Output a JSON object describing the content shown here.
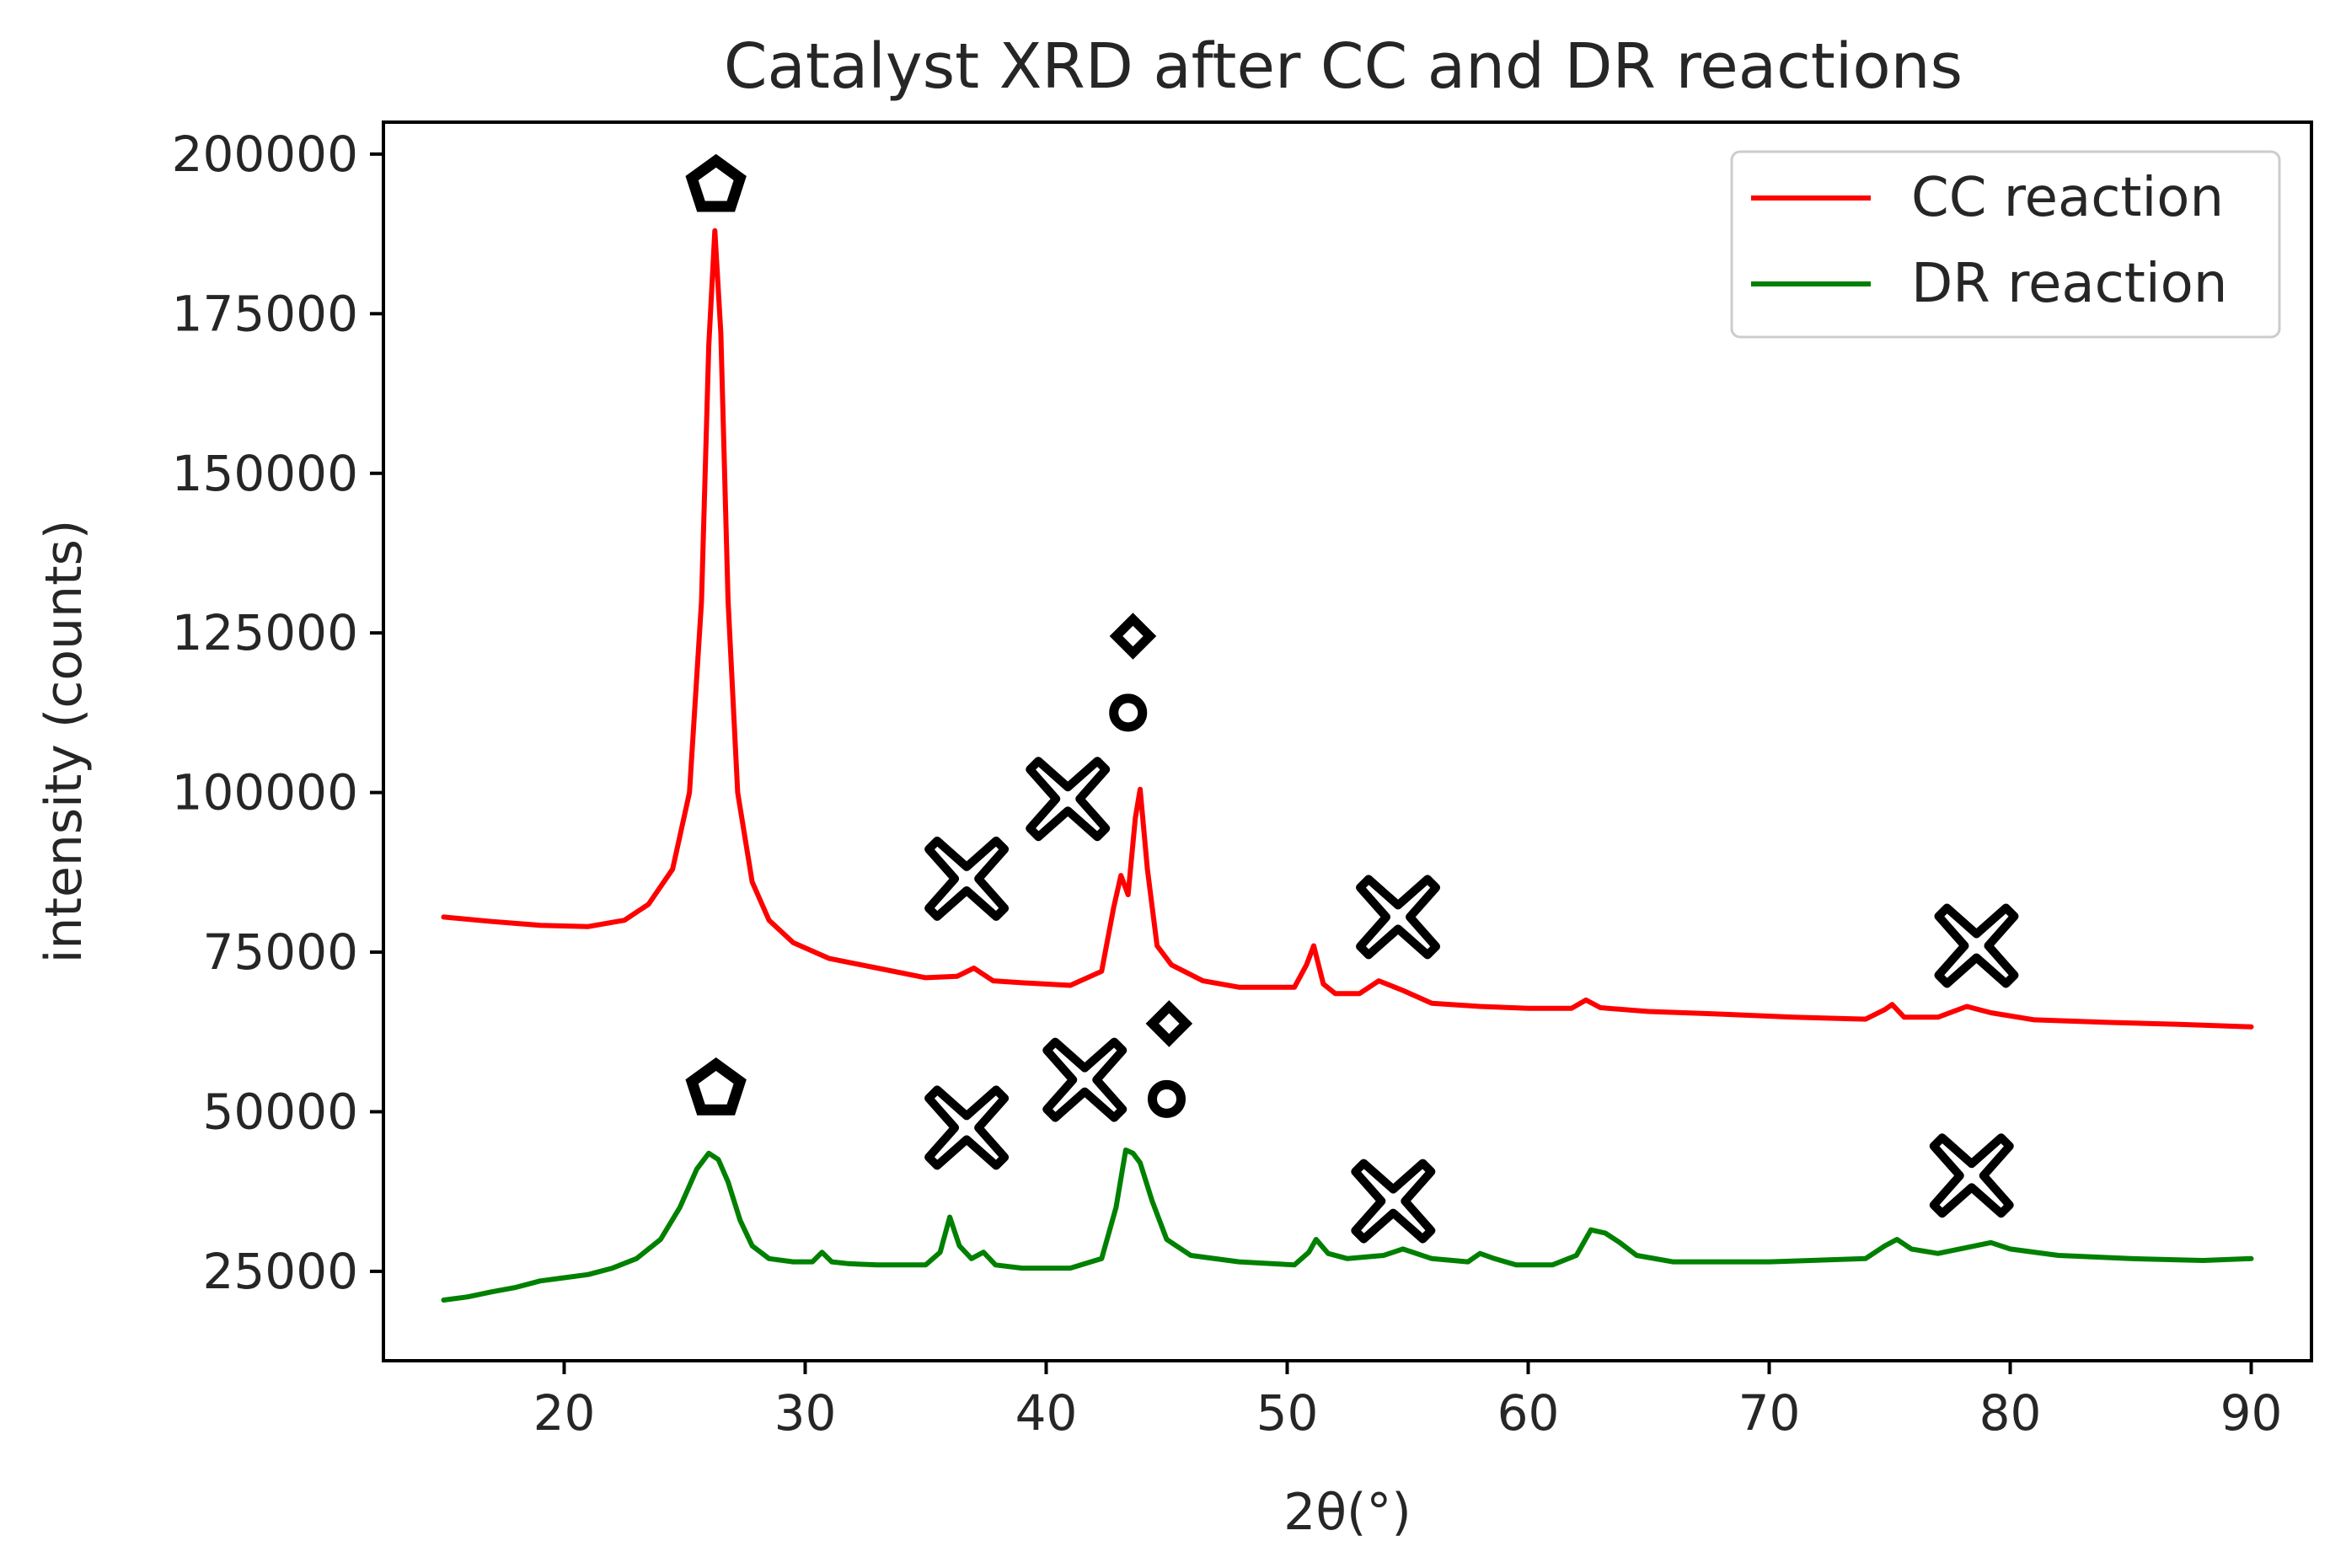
{
  "chart_data": {
    "type": "line",
    "title": "Catalyst XRD after CC and DR reactions",
    "xlabel": "2θ(°)",
    "ylabel": "intensity (counts)",
    "xlim": [
      12.5,
      92.5
    ],
    "ylim": [
      11000,
      205000
    ],
    "xticks": [
      20,
      30,
      40,
      50,
      60,
      70,
      80,
      90
    ],
    "yticks": [
      25000,
      50000,
      75000,
      100000,
      125000,
      150000,
      175000,
      200000
    ],
    "grid": false,
    "legend_position": "top-right",
    "series": [
      {
        "name": "CC reaction",
        "color": "#ff0000",
        "x": [
          15,
          17,
          19,
          21,
          22.5,
          23.5,
          24.5,
          25.2,
          25.7,
          26.0,
          26.25,
          26.5,
          26.8,
          27.2,
          27.8,
          28.5,
          29.5,
          31,
          33,
          35,
          36.3,
          37,
          37.8,
          39,
          41,
          42.3,
          42.8,
          43.1,
          43.4,
          43.7,
          43.9,
          44.2,
          44.6,
          45.2,
          46.5,
          48,
          50.3,
          50.8,
          51.1,
          51.5,
          52,
          53,
          53.8,
          54.8,
          56,
          58,
          60,
          61.8,
          62.4,
          63,
          65,
          68,
          71,
          74,
          74.8,
          75.1,
          75.6,
          77,
          78.2,
          79.2,
          81,
          84,
          87,
          90
        ],
        "values": [
          80500,
          79800,
          79200,
          79000,
          80000,
          82500,
          88000,
          100000,
          130000,
          170000,
          188000,
          172000,
          130000,
          100000,
          86000,
          80000,
          76500,
          74000,
          72500,
          71000,
          71200,
          72500,
          70500,
          70200,
          69800,
          72000,
          82000,
          87000,
          84000,
          96000,
          100500,
          88000,
          76000,
          73000,
          70500,
          69500,
          69500,
          73000,
          76000,
          70000,
          68500,
          68500,
          70500,
          69000,
          67000,
          66500,
          66200,
          66200,
          67500,
          66300,
          65700,
          65300,
          64800,
          64500,
          66000,
          66800,
          64800,
          64800,
          66500,
          65500,
          64400,
          64000,
          63700,
          63300
        ]
      },
      {
        "name": "DR reaction",
        "color": "#008000",
        "x": [
          15,
          16,
          17,
          18,
          19,
          20,
          21,
          22,
          23,
          24,
          24.8,
          25.5,
          26.0,
          26.4,
          26.8,
          27.3,
          27.8,
          28.5,
          29.5,
          30.3,
          30.7,
          31.1,
          31.8,
          33,
          35,
          35.6,
          36.0,
          36.4,
          36.9,
          37.4,
          37.9,
          39,
          41,
          42.3,
          42.9,
          43.3,
          43.6,
          43.9,
          44.4,
          45,
          46,
          48,
          50.3,
          50.9,
          51.2,
          51.7,
          52.5,
          54,
          54.8,
          56,
          57.5,
          58,
          58.6,
          59.5,
          61,
          62,
          62.6,
          63.2,
          63.8,
          64.5,
          66,
          70,
          74,
          74.8,
          75.3,
          75.9,
          77,
          78.3,
          79.2,
          80,
          82,
          85,
          88,
          90
        ],
        "values": [
          20500,
          21000,
          21800,
          22500,
          23500,
          24000,
          24500,
          25500,
          27000,
          30000,
          35000,
          41000,
          43500,
          42500,
          39000,
          33000,
          29000,
          27000,
          26500,
          26500,
          28000,
          26500,
          26200,
          26000,
          26000,
          28000,
          33500,
          29000,
          27000,
          28000,
          26000,
          25500,
          25500,
          27000,
          35000,
          44000,
          43500,
          42000,
          36000,
          30000,
          27500,
          26500,
          26000,
          28000,
          30000,
          27800,
          27000,
          27500,
          28500,
          27000,
          26500,
          27800,
          27000,
          26000,
          26000,
          27500,
          31500,
          31000,
          29500,
          27500,
          26500,
          26500,
          27000,
          29000,
          30000,
          28500,
          27800,
          28800,
          29500,
          28500,
          27500,
          27000,
          26700,
          27000
        ]
      }
    ],
    "annotations": [
      {
        "symbol": "pentagon",
        "x": 26.3,
        "y": 195000
      },
      {
        "symbol": "diamond",
        "x": 43.6,
        "y": 124500
      },
      {
        "symbol": "circle",
        "x": 43.4,
        "y": 112500
      },
      {
        "symbol": "cross",
        "x": 36.7,
        "y": 86500
      },
      {
        "symbol": "cross",
        "x": 40.9,
        "y": 99000
      },
      {
        "symbol": "cross",
        "x": 54.6,
        "y": 80500
      },
      {
        "symbol": "cross",
        "x": 78.6,
        "y": 76000
      },
      {
        "symbol": "pentagon",
        "x": 26.3,
        "y": 53500
      },
      {
        "symbol": "diamond",
        "x": 45.1,
        "y": 63800
      },
      {
        "symbol": "circle",
        "x": 45.0,
        "y": 52000
      },
      {
        "symbol": "cross",
        "x": 36.7,
        "y": 47500
      },
      {
        "symbol": "cross",
        "x": 41.6,
        "y": 55000
      },
      {
        "symbol": "cross",
        "x": 54.4,
        "y": 36000
      },
      {
        "symbol": "cross",
        "x": 78.4,
        "y": 40000
      }
    ]
  }
}
